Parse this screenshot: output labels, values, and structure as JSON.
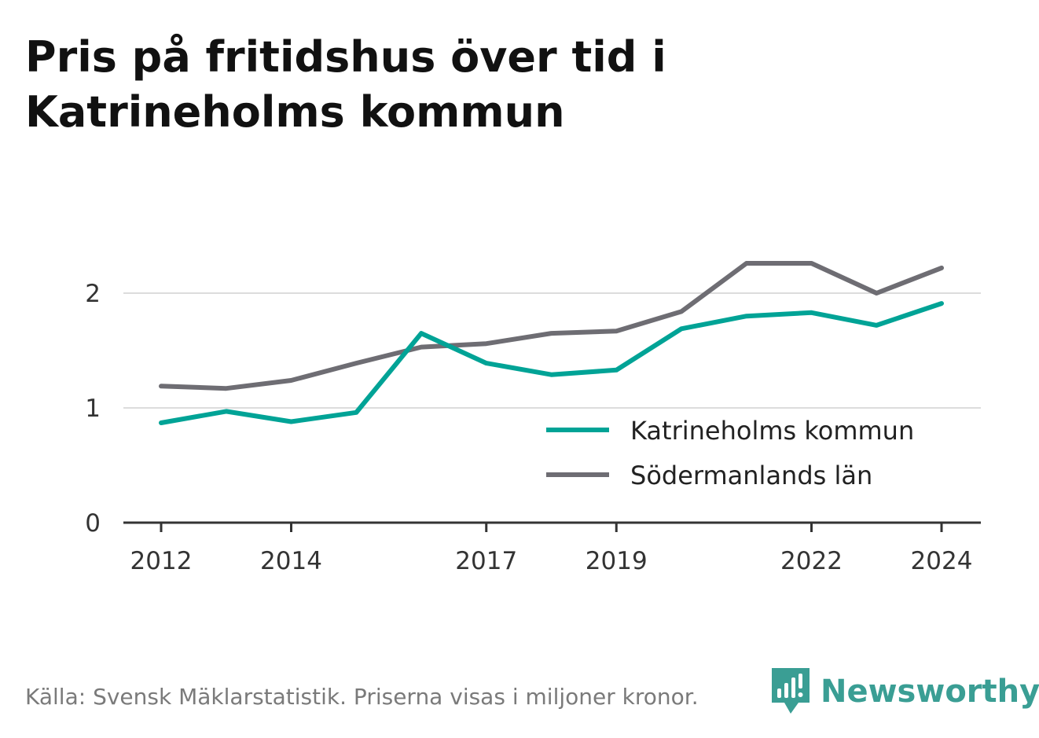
{
  "title": "Pris på fritidshus över tid i Katrineholms kommun",
  "footer": {
    "source": "Källa: Svensk Mäklarstatistik. Priserna visas i miljoner kronor."
  },
  "brand": {
    "name": "Newsworthy",
    "icon": "newsworthy-logo-icon",
    "color": "#3a9e94"
  },
  "chart_data": {
    "type": "line",
    "x": [
      2012,
      2013,
      2014,
      2015,
      2016,
      2017,
      2018,
      2019,
      2020,
      2021,
      2022,
      2023,
      2024
    ],
    "x_ticks": [
      "2012",
      "2014",
      "2017",
      "2019",
      "2022",
      "2024"
    ],
    "y_ticks": [
      "0",
      "1",
      "2"
    ],
    "ylim": [
      0,
      2.5
    ],
    "grid": "horizontal",
    "legend_position": "bottom-right",
    "series": [
      {
        "name": "Katrineholms kommun",
        "color": "#00a396",
        "values": [
          0.87,
          0.97,
          0.88,
          0.96,
          1.65,
          1.39,
          1.29,
          1.33,
          1.69,
          1.8,
          1.83,
          1.72,
          1.91
        ]
      },
      {
        "name": "Södermanlands län",
        "color": "#6e6d73",
        "values": [
          1.19,
          1.17,
          1.24,
          1.39,
          1.53,
          1.56,
          1.65,
          1.67,
          1.84,
          2.26,
          2.26,
          2.0,
          2.22
        ]
      }
    ]
  }
}
